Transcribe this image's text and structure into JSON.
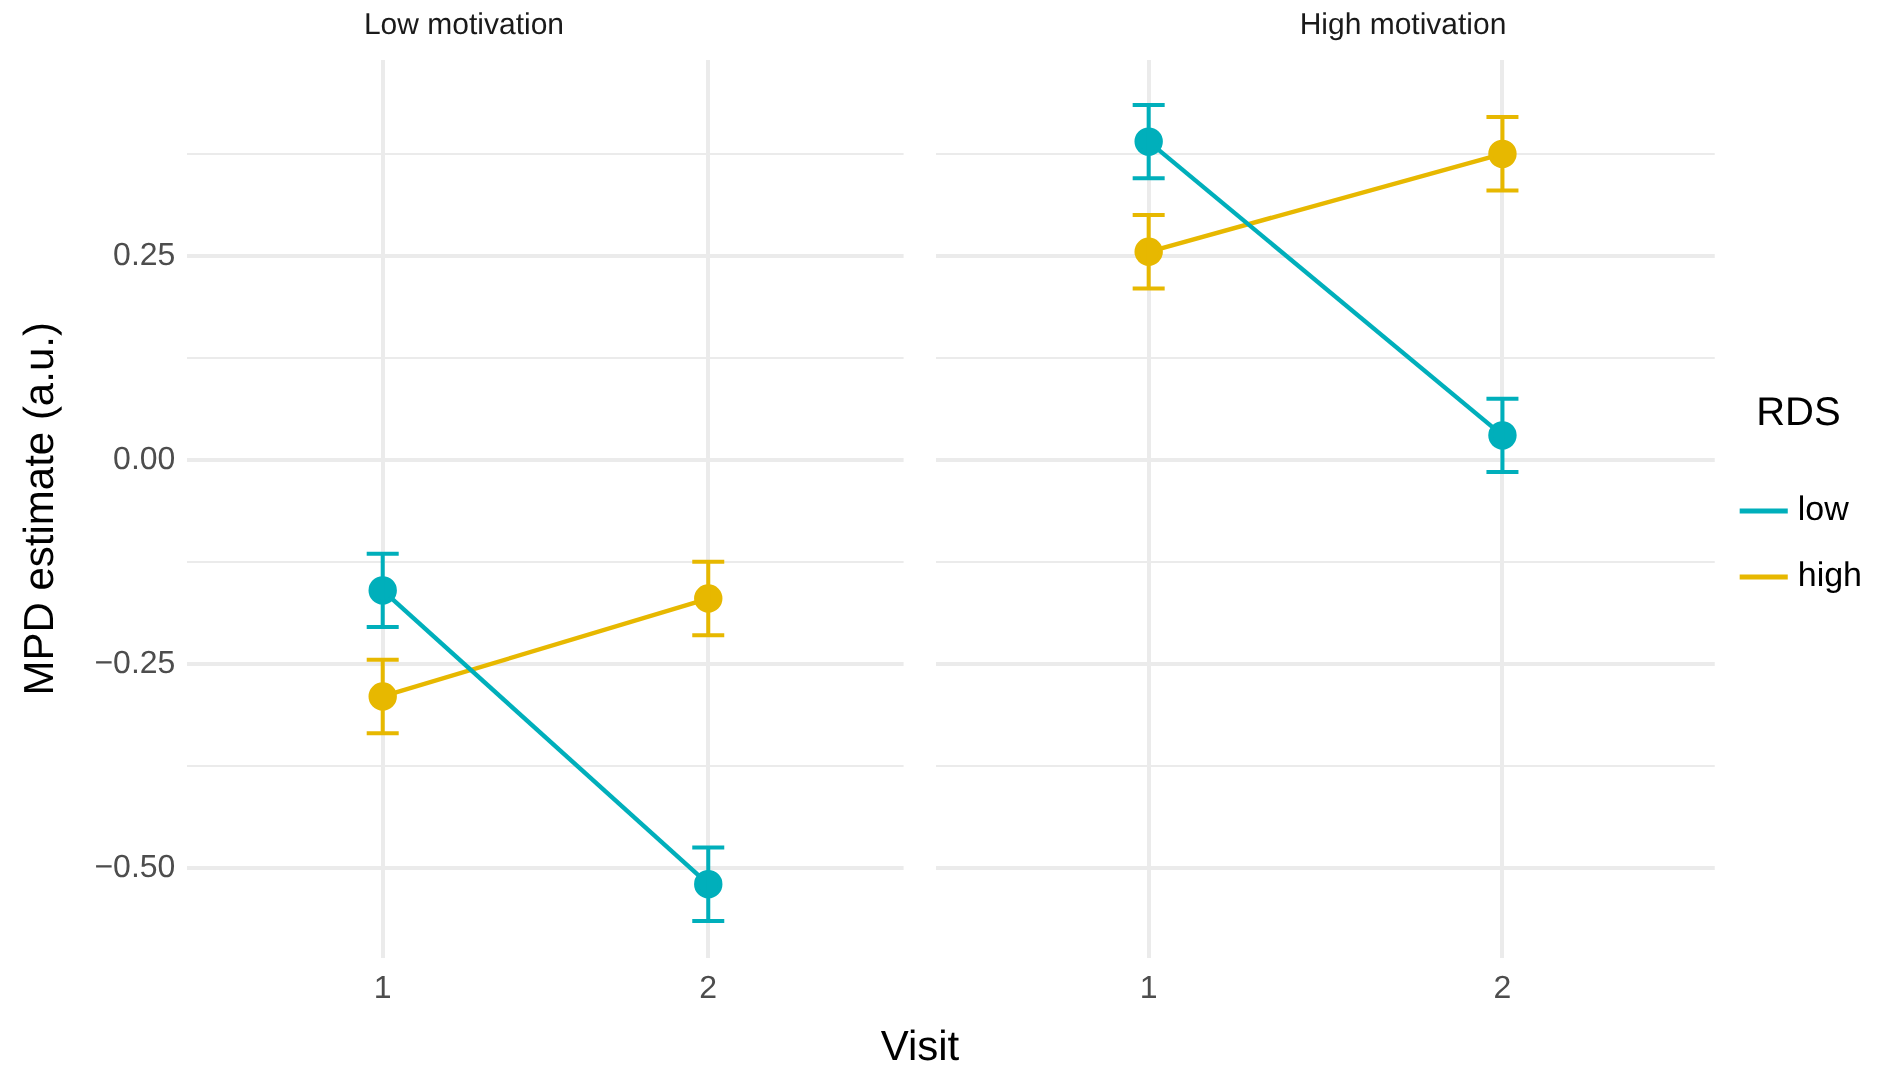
{
  "chart_data": [
    {
      "type": "line",
      "title": "Low motivation",
      "ylabel": "MPD estimate (a.u.)",
      "xlabel": "Visit",
      "categories": [
        "1",
        "2"
      ],
      "series": [
        {
          "color": "#00afbb",
          "values": [
            -0.16,
            -0.52
          ],
          "errors": [
            0.045,
            0.045
          ]
        },
        {
          "color": "#e7b800",
          "values": [
            -0.29,
            -0.17
          ],
          "errors": [
            0.045,
            0.045
          ]
        }
      ],
      "ylim": [
        -0.61,
        0.49
      ],
      "yticks": [
        {
          "value": -0.5,
          "label": "−0.50"
        },
        {
          "value": -0.375,
          "label": null
        },
        {
          "value": -0.25,
          "label": "−0.25"
        },
        {
          "value": -0.125,
          "label": null
        },
        {
          "value": 0,
          "label": "0.00"
        },
        {
          "value": 0.125,
          "label": null
        },
        0.25,
        {
          "value": 0.375,
          "label": null
        }
      ],
      "grid": true,
      "marker": "circle",
      "line_style": "solid",
      "legend": false
    },
    {
      "type": "line",
      "title": "High motivation",
      "legend_title": "RDS",
      "categories": [
        "1",
        "2"
      ],
      "series": [
        {
          "name": "low",
          "color": "#00afbb",
          "values": [
            0.39,
            0.03
          ],
          "errors": [
            0.045,
            0.045
          ]
        },
        {
          "name": "high",
          "color": "#e7b800",
          "values": [
            0.255,
            0.375
          ],
          "errors": [
            0.045,
            0.045
          ]
        }
      ],
      "ylim": [
        -0.61,
        0.49
      ],
      "yticks": [
        {
          "value": -0.5,
          "label": null
        },
        {
          "value": -0.375,
          "label": null
        },
        {
          "value": -0.25,
          "label": null
        },
        {
          "value": -0.125,
          "label": null
        },
        {
          "value": 0,
          "label": null
        },
        {
          "value": 0.125,
          "label": null
        },
        {
          "value": 0.25,
          "label": null
        },
        {
          "value": 0.375,
          "label": null
        }
      ],
      "grid": true,
      "marker": "circle",
      "line_style": "solid",
      "legend": "right",
      "tick_labels": "x"
    }
  ]
}
